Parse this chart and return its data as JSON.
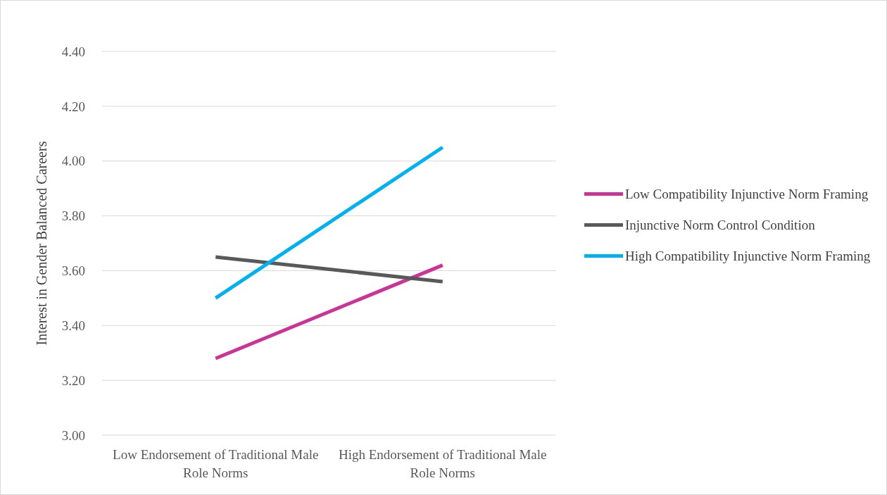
{
  "chart_data": {
    "type": "line",
    "ylabel": "Interest in Gender Balanced Careers",
    "categories": [
      "Low Endorsement of Traditional Male Role Norms",
      "High Endorsement of Traditional Male Role Norms"
    ],
    "series": [
      {
        "name": "Low Compatibility Injunctive Norm Framing",
        "color": "#cc3399",
        "values": [
          3.28,
          3.62
        ]
      },
      {
        "name": "Injunctive Norm Control Condition",
        "color": "#595959",
        "values": [
          3.65,
          3.56
        ]
      },
      {
        "name": "High Compatibility Injunctive Norm Framing",
        "color": "#00b0f0",
        "values": [
          3.5,
          4.05
        ]
      }
    ],
    "ylim": [
      3,
      4.4
    ],
    "yticks": [
      {
        "value": 3,
        "label": "3.00"
      },
      {
        "value": 3.2,
        "label": "3.20"
      },
      {
        "value": 3.4,
        "label": "3.40"
      },
      {
        "value": 3.6,
        "label": "3.60"
      },
      {
        "value": 3.8,
        "label": "3.80"
      },
      {
        "value": 4,
        "label": "4.00"
      },
      {
        "value": 4.2,
        "label": "4.20"
      },
      {
        "value": 4.4,
        "label": "4.40"
      }
    ],
    "grid": "y",
    "legend": "right",
    "marker": "none",
    "line_style": "solid"
  }
}
